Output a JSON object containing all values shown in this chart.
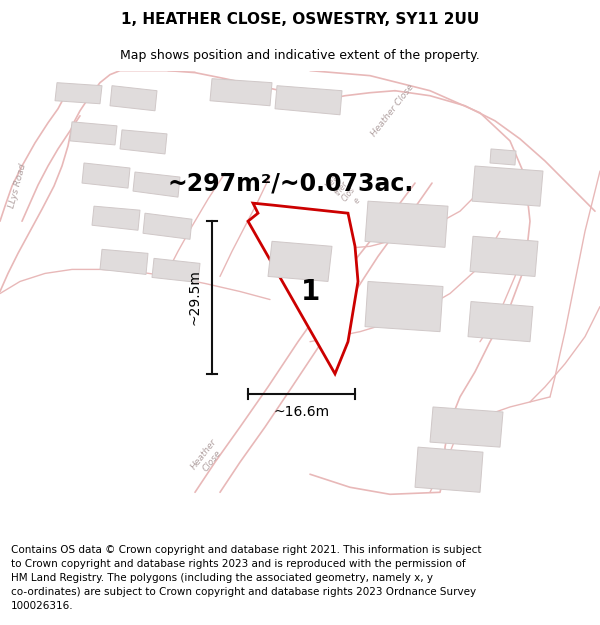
{
  "title": "1, HEATHER CLOSE, OSWESTRY, SY11 2UU",
  "subtitle": "Map shows position and indicative extent of the property.",
  "area_text": "~297m²/~0.073ac.",
  "width_label": "~16.6m",
  "height_label": "~29.5m",
  "plot_number": "1",
  "footer_text": "Contains OS data © Crown copyright and database right 2021. This information is subject\nto Crown copyright and database rights 2023 and is reproduced with the permission of\nHM Land Registry. The polygons (including the associated geometry, namely x, y\nco-ordinates) are subject to Crown copyright and database rights 2023 Ordnance Survey\n100026316.",
  "map_bg": "#ffffff",
  "road_line_color": "#e8b8b8",
  "building_face": "#e0dcdc",
  "building_edge": "#d0c8c8",
  "plot_fill": "#ffffff",
  "plot_edge": "#cc0000",
  "dim_color": "#111111",
  "text_color": "#333333",
  "road_label_color": "#b0a0a0",
  "title_fontsize": 11,
  "subtitle_fontsize": 9,
  "area_fontsize": 17,
  "label_fontsize": 10,
  "plot_label_fontsize": 20,
  "footer_fontsize": 7.5
}
